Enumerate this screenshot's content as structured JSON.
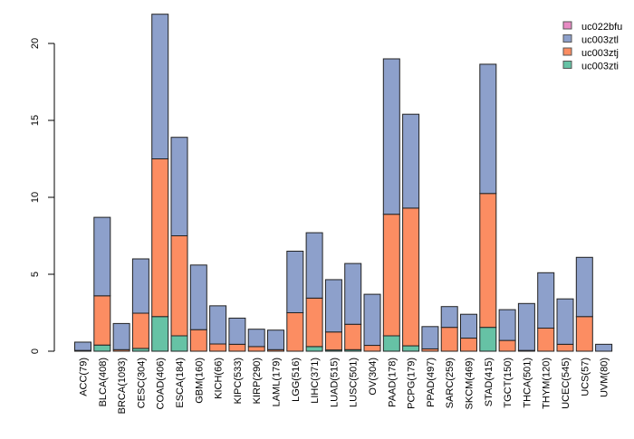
{
  "chart_data": {
    "type": "bar",
    "stacked": true,
    "title": "",
    "xlabel": "",
    "ylabel": "",
    "ylim": [
      0,
      22
    ],
    "yticks": [
      0,
      5,
      10,
      15,
      20
    ],
    "legend_position": "top-right",
    "categories": [
      "ACC(79)",
      "BLCA(408)",
      "BRCA(1093)",
      "CESC(304)",
      "COAD(406)",
      "ESCA(184)",
      "GBM(160)",
      "KICH(66)",
      "KIPC(533)",
      "KIRP(290)",
      "LAML(179)",
      "LGG(516)",
      "LIHC(371)",
      "LUAD(515)",
      "LUSC(501)",
      "OV(304)",
      "PAAD(178)",
      "PCPG(179)",
      "PPAD(497)",
      "SARC(259)",
      "SKCM(469)",
      "STAD(415)",
      "TGCT(150)",
      "THCA(501)",
      "THYM(120)",
      "UCEC(545)",
      "UCS(57)",
      "UVM(80)"
    ],
    "series": [
      {
        "name": "uc003zti",
        "color": "#66c2a5",
        "values": [
          0,
          0.4,
          0,
          0.18,
          2.25,
          1.0,
          0,
          0,
          0,
          0,
          0,
          0,
          0.3,
          0.08,
          0.1,
          0,
          1.0,
          0.35,
          0,
          0,
          0,
          1.55,
          0,
          0,
          0,
          0,
          0,
          0
        ]
      },
      {
        "name": "uc003ztj",
        "color": "#fc8d62",
        "values": [
          0.05,
          3.2,
          0.1,
          2.29,
          10.25,
          6.5,
          1.4,
          0.47,
          0.45,
          0.3,
          0.1,
          2.5,
          3.15,
          1.17,
          1.65,
          0.38,
          7.9,
          8.95,
          0.15,
          1.55,
          0.85,
          8.7,
          0.7,
          0.05,
          1.5,
          0.45,
          2.25,
          0
        ]
      },
      {
        "name": "uc003ztl",
        "color": "#8da0cb",
        "values": [
          0.54,
          5.1,
          1.7,
          3.53,
          9.4,
          6.4,
          4.2,
          2.48,
          1.7,
          1.13,
          1.27,
          4.0,
          4.25,
          3.4,
          3.95,
          3.32,
          10.1,
          6.1,
          1.45,
          1.35,
          1.55,
          8.4,
          2.0,
          3.05,
          3.6,
          2.95,
          3.85,
          0.45
        ]
      },
      {
        "name": "uc022bfu",
        "color": "#e78ac3",
        "values": [
          0,
          0,
          0,
          0,
          0,
          0,
          0,
          0,
          0,
          0,
          0,
          0,
          0,
          0,
          0,
          0,
          0,
          0,
          0,
          0,
          0,
          0,
          0,
          0,
          0,
          0,
          0,
          0
        ]
      }
    ],
    "legend_order": [
      "uc022bfu",
      "uc003ztl",
      "uc003ztj",
      "uc003zti"
    ]
  }
}
